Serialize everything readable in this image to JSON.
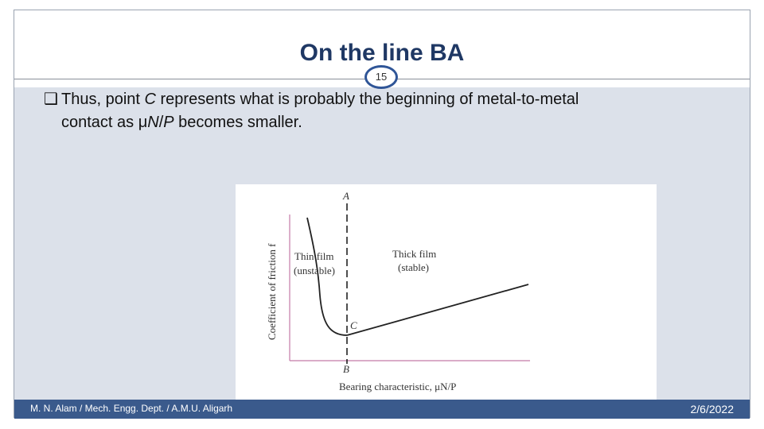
{
  "slide": {
    "title": "On the line BA",
    "page_number": "15",
    "bullet": {
      "marker": "❑",
      "lines": [
        {
          "parts": [
            {
              "text": "Thus, point ",
              "italic": false
            },
            {
              "text": "C",
              "italic": true
            },
            {
              "text": " represents what is probably the beginning of metal-to-metal",
              "italic": false
            }
          ]
        },
        {
          "parts": [
            {
              "text": "contact as μ",
              "italic": false
            },
            {
              "text": "N",
              "italic": true
            },
            {
              "text": "/",
              "italic": false
            },
            {
              "text": "P",
              "italic": true
            },
            {
              "text": " becomes smaller.",
              "italic": false
            }
          ]
        }
      ]
    },
    "footer": {
      "left": "M. N. Alam / Mech. Engg. Dept. / A.M.U. Aligarh",
      "right": "2/6/2022"
    }
  },
  "figure": {
    "y_axis_label": "Coefficient of friction f",
    "x_axis_label": "Bearing characteristic, μN/P",
    "point_A": "A",
    "point_B": "B",
    "point_C": "C",
    "thin_film_line1": "Thin film",
    "thin_film_line2": "(unstable)",
    "thick_film_line1": "Thick film",
    "thick_film_line2": "(stable)"
  },
  "colors": {
    "title": "#1f3864",
    "content_background": "#dce1ea",
    "footer_bar": "#3a5a8c",
    "page_number_ring": "#2f5597",
    "axis": "#c47aa8",
    "curve": "#222222"
  }
}
